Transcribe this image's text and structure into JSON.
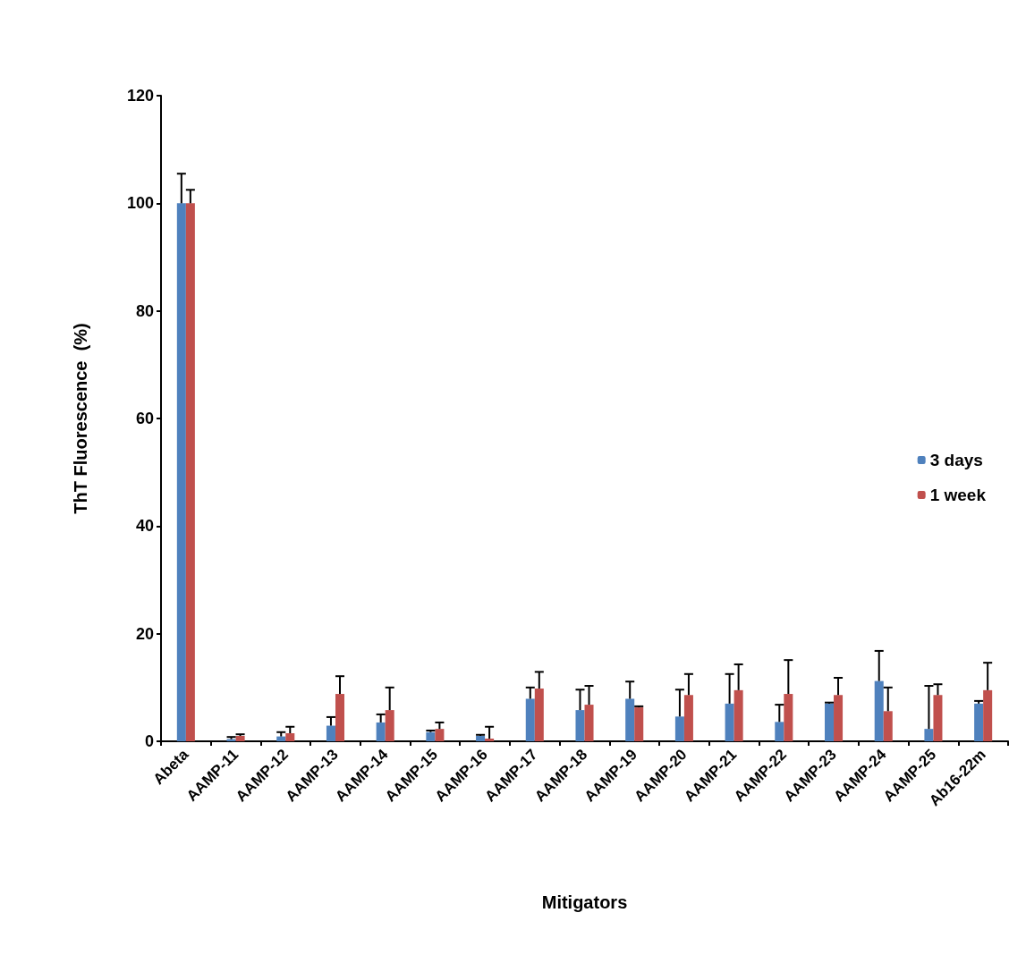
{
  "chart_data": {
    "type": "bar",
    "xlabel": "Mitigators",
    "ylabel": "ThT Fluorescence  (%)",
    "categories": [
      "Abeta",
      "AAMP-11",
      "AAMP-12",
      "AAMP-13",
      "AAMP-14",
      "AAMP-15",
      "AAMP-16",
      "AAMP-17",
      "AAMP-18",
      "AAMP-19",
      "AAMP-20",
      "AAMP-21",
      "AAMP-22",
      "AAMP-23",
      "AAMP-24",
      "AAMP-25",
      "Ab16-22m"
    ],
    "series": [
      {
        "name": "3 days",
        "color": "#4f81bd",
        "values": [
          100,
          0.4,
          0.9,
          2.9,
          3.5,
          1.7,
          1.0,
          7.9,
          5.8,
          7.9,
          4.6,
          7.0,
          3.6,
          7.0,
          11.2,
          2.3,
          7.0
        ],
        "errors": [
          [
            100,
            105.5
          ],
          [
            0.4,
            0.8
          ],
          [
            0.9,
            1.7
          ],
          [
            2.9,
            4.5
          ],
          [
            3.5,
            5.0
          ],
          [
            1.7,
            2.0
          ],
          [
            1.0,
            1.2
          ],
          [
            7.9,
            10
          ],
          [
            5.8,
            9.6
          ],
          [
            7.9,
            11.1
          ],
          [
            4.6,
            9.6
          ],
          [
            7.0,
            12.5
          ],
          [
            3.6,
            6.8
          ],
          [
            7.0,
            7.2
          ],
          [
            11.2,
            16.8
          ],
          [
            2.3,
            10.3
          ],
          [
            7.0,
            7.5
          ]
        ]
      },
      {
        "name": "1 week",
        "color": "#c0504d",
        "values": [
          100,
          1.0,
          1.5,
          8.8,
          5.8,
          2.3,
          0.5,
          9.8,
          6.8,
          6.3,
          8.6,
          9.5,
          8.8,
          8.6,
          5.6,
          8.6,
          9.5
        ],
        "errors": [
          [
            100,
            102.5
          ],
          [
            1.0,
            1.3
          ],
          [
            1.5,
            2.7
          ],
          [
            8.8,
            12.1
          ],
          [
            5.8,
            10
          ],
          [
            2.3,
            3.5
          ],
          [
            0.5,
            2.7
          ],
          [
            9.8,
            12.9
          ],
          [
            6.8,
            10.3
          ],
          [
            6.3,
            6.5
          ],
          [
            8.6,
            12.5
          ],
          [
            9.5,
            14.3
          ],
          [
            8.8,
            15.1
          ],
          [
            8.6,
            11.8
          ],
          [
            5.6,
            10
          ],
          [
            8.6,
            10.6
          ],
          [
            9.5,
            14.6
          ]
        ]
      }
    ],
    "ylim": [
      0,
      120
    ],
    "yticks": [
      0,
      20,
      40,
      60,
      80,
      100,
      120
    ],
    "grid": false,
    "legend": "right"
  }
}
